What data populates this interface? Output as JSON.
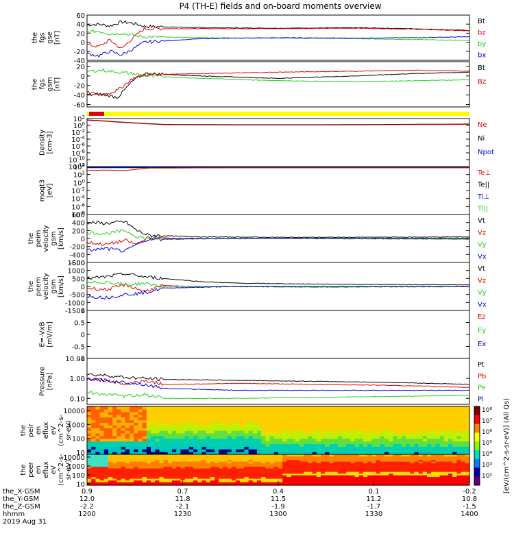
{
  "title": "P4 (TH-E) fields and on-board moments overview",
  "colors": {
    "black": "#000000",
    "red": "#e00000",
    "green": "#20d020",
    "blue": "#0000e0",
    "yellow": "#ffff00",
    "orange": "#ffa000",
    "cyan": "#00e0e0"
  },
  "chart_data": [
    {
      "type": "line",
      "id": "fgs_gse",
      "ylabel": [
        "the",
        "fgs",
        "gse",
        "[nT]"
      ],
      "ylim": [
        -40,
        60
      ],
      "yticks": [
        -40,
        -20,
        0,
        20,
        40,
        60
      ],
      "legend": [
        "Bt",
        "bz",
        "by",
        "bx"
      ],
      "series": [
        {
          "name": "Bt",
          "color": "black",
          "x": [
            0,
            0.03,
            0.06,
            0.09,
            0.12,
            0.15,
            0.3,
            0.5,
            0.7,
            0.85,
            1.0
          ],
          "y": [
            38,
            40,
            36,
            45,
            42,
            35,
            32,
            31,
            32,
            30,
            26
          ]
        },
        {
          "name": "bz",
          "color": "red",
          "x": [
            0,
            0.03,
            0.06,
            0.09,
            0.12,
            0.15,
            0.3,
            0.5,
            0.7,
            0.85,
            1.0
          ],
          "y": [
            -5,
            -10,
            5,
            -15,
            10,
            30,
            30,
            30,
            31,
            29,
            25
          ]
        },
        {
          "name": "by",
          "color": "green",
          "x": [
            0,
            0.03,
            0.06,
            0.09,
            0.12,
            0.15,
            0.3,
            0.5,
            0.7,
            0.85,
            1.0
          ],
          "y": [
            22,
            25,
            18,
            20,
            15,
            12,
            10,
            9,
            8,
            6,
            4
          ]
        },
        {
          "name": "bx",
          "color": "blue",
          "x": [
            0,
            0.03,
            0.06,
            0.09,
            0.12,
            0.15,
            0.3,
            0.5,
            0.7,
            0.85,
            1.0
          ],
          "y": [
            -25,
            -30,
            -20,
            -28,
            -15,
            0,
            8,
            10,
            9,
            10,
            12
          ]
        }
      ]
    },
    {
      "type": "line",
      "id": "fgs_gsm",
      "ylabel": [
        "the",
        "fgs",
        "gsm",
        "[nT]"
      ],
      "ylim": [
        -65,
        30
      ],
      "yticks": [
        -60,
        -40,
        -20,
        0,
        20
      ],
      "legend": [
        "Bt",
        "Bz"
      ],
      "series": [
        {
          "name": "black",
          "color": "black",
          "x": [
            0,
            0.04,
            0.08,
            0.12,
            0.15,
            0.3,
            0.5,
            0.7,
            0.85,
            1.0
          ],
          "y": [
            -40,
            -38,
            -45,
            -10,
            5,
            0,
            -5,
            0,
            5,
            8
          ]
        },
        {
          "name": "red",
          "color": "red",
          "x": [
            0,
            0.04,
            0.08,
            0.12,
            0.15,
            0.3,
            0.5,
            0.7,
            0.85,
            1.0
          ],
          "y": [
            -35,
            -40,
            -30,
            -5,
            3,
            5,
            8,
            10,
            12,
            10
          ]
        },
        {
          "name": "green",
          "color": "green",
          "x": [
            0,
            0.04,
            0.08,
            0.12,
            0.15,
            0.3,
            0.5,
            0.7,
            0.85,
            1.0
          ],
          "y": [
            10,
            12,
            8,
            5,
            0,
            -5,
            -10,
            -12,
            -10,
            -8
          ]
        }
      ]
    },
    {
      "type": "line",
      "id": "density",
      "log": true,
      "ylabel": [
        "Density",
        "[cm-3]"
      ],
      "ylim": [
        -12,
        2
      ],
      "yticks": [
        2,
        0,
        -2,
        -4,
        -6,
        -8,
        -10,
        -12
      ],
      "legend": [
        "Ne",
        "Ni",
        "Npot"
      ],
      "series": [
        {
          "name": "Ni",
          "color": "black",
          "x": [
            0,
            0.05,
            0.1,
            0.15,
            0.2,
            0.4,
            0.6,
            0.8,
            1.0
          ],
          "y": [
            1.6,
            1.3,
            0.9,
            0.6,
            0.3,
            0.2,
            0.2,
            0.3,
            0.4
          ]
        },
        {
          "name": "Ne",
          "color": "red",
          "x": [
            0,
            0.05,
            0.1,
            0.15,
            0.2,
            0.4,
            0.6,
            0.8,
            1.0
          ],
          "y": [
            1.5,
            1.2,
            0.8,
            0.5,
            0.2,
            0.1,
            0.1,
            0.2,
            0.3
          ]
        }
      ]
    },
    {
      "type": "line",
      "id": "temperature",
      "log": true,
      "ylabel": [
        "moqt3",
        "[eV]"
      ],
      "ylim": [
        -8,
        4
      ],
      "yticks": [
        4,
        2,
        0,
        -2,
        -4,
        -6,
        -8
      ],
      "legend": [
        "Te⊥",
        "Te||",
        "Ti⊥",
        "Ti||"
      ],
      "series": [
        {
          "name": "Te||",
          "color": "black",
          "x": [
            0,
            1
          ],
          "y": [
            3.7,
            3.7
          ]
        },
        {
          "name": "Ti||",
          "color": "green",
          "x": [
            0,
            1
          ],
          "y": [
            3.85,
            3.85
          ]
        },
        {
          "name": "Ti⊥",
          "color": "blue",
          "x": [
            0,
            1
          ],
          "y": [
            3.8,
            3.8
          ]
        },
        {
          "name": "Te⊥",
          "color": "red",
          "x": [
            0,
            0.05,
            0.1,
            0.13,
            0.16,
            0.4,
            1.0
          ],
          "y": [
            3.0,
            3.1,
            3.0,
            3.3,
            3.6,
            3.7,
            3.7
          ]
        }
      ]
    },
    {
      "type": "line",
      "id": "peim_velocity",
      "ylabel": [
        "the",
        "peim",
        "velocity",
        "gsm",
        "[km/s]"
      ],
      "ylim": [
        -600,
        600
      ],
      "yticks": [
        -600,
        -400,
        -200,
        0,
        200,
        400,
        600
      ],
      "legend": [
        "Vt",
        "Vz",
        "Vy",
        "Vx"
      ],
      "series": [
        {
          "name": "Vt",
          "color": "black",
          "x": [
            0,
            0.05,
            0.1,
            0.13,
            0.16,
            0.3,
            0.5,
            0.7,
            1.0
          ],
          "y": [
            400,
            380,
            420,
            200,
            80,
            40,
            30,
            30,
            40
          ]
        },
        {
          "name": "Vz",
          "color": "red",
          "x": [
            0,
            0.05,
            0.1,
            0.13,
            0.16,
            0.3,
            0.5,
            0.7,
            1.0
          ],
          "y": [
            -100,
            -150,
            -50,
            -150,
            20,
            0,
            0,
            0,
            10
          ]
        },
        {
          "name": "Vy",
          "color": "green",
          "x": [
            0,
            0.05,
            0.1,
            0.13,
            0.16,
            0.3,
            0.5,
            0.7,
            1.0
          ],
          "y": [
            150,
            120,
            200,
            50,
            -10,
            0,
            0,
            -10,
            -20
          ]
        },
        {
          "name": "Vx",
          "color": "blue",
          "x": [
            0,
            0.05,
            0.1,
            0.13,
            0.16,
            0.3,
            0.5,
            0.7,
            1.0
          ],
          "y": [
            -300,
            -250,
            -320,
            -150,
            -20,
            -10,
            0,
            0,
            0
          ]
        }
      ]
    },
    {
      "type": "line",
      "id": "peem_velocity",
      "ylabel": [
        "the",
        "peem",
        "velocity",
        "gsm",
        "[km/s]"
      ],
      "ylim": [
        -1500,
        1500
      ],
      "yticks": [
        -1500,
        -1000,
        -500,
        0,
        500,
        1000,
        1500
      ],
      "legend": [
        "Vt",
        "Vz",
        "Vy",
        "Vx"
      ],
      "series": [
        {
          "name": "Vt",
          "color": "black",
          "x": [
            0,
            0.05,
            0.1,
            0.15,
            0.2,
            0.3,
            0.4,
            0.6,
            0.8,
            1.0
          ],
          "y": [
            500,
            600,
            800,
            600,
            500,
            300,
            200,
            150,
            120,
            100
          ]
        },
        {
          "name": "Vz",
          "color": "red",
          "x": [
            0,
            0.05,
            0.1,
            0.15,
            0.2,
            0.3,
            0.4,
            0.6,
            0.8,
            1.0
          ],
          "y": [
            -100,
            -200,
            100,
            -300,
            50,
            0,
            0,
            0,
            0,
            0
          ]
        },
        {
          "name": "Vy",
          "color": "green",
          "x": [
            0,
            0.05,
            0.1,
            0.15,
            0.2,
            0.3,
            0.4,
            0.6,
            0.8,
            1.0
          ],
          "y": [
            200,
            300,
            100,
            200,
            0,
            0,
            -20,
            -50,
            -30,
            -20
          ]
        },
        {
          "name": "Vx",
          "color": "blue",
          "x": [
            0,
            0.05,
            0.1,
            0.15,
            0.2,
            0.3,
            0.4,
            0.6,
            0.8,
            1.0
          ],
          "y": [
            -600,
            -700,
            -500,
            -400,
            -100,
            -50,
            0,
            0,
            0,
            0
          ]
        }
      ]
    },
    {
      "type": "line",
      "id": "efield",
      "ylabel": [
        "E=-VxB",
        "[mV/m]"
      ],
      "ylim": [
        -1,
        1
      ],
      "yticks": [
        -1.0,
        -0.5,
        0.0,
        0.5,
        1.0
      ],
      "legend": [
        "Ez",
        "Ey",
        "Ex"
      ],
      "series": []
    },
    {
      "type": "line",
      "id": "pressure",
      "log": true,
      "ylabel": [
        "Pressure",
        "[nPa]"
      ],
      "ylim": [
        -1.3,
        1
      ],
      "yticks": [
        1,
        0,
        -1
      ],
      "ytick_labels": [
        "10.00",
        "1.00",
        "0.10"
      ],
      "legend": [
        "Pt",
        "Pb",
        "Pe",
        "Pi"
      ],
      "series": [
        {
          "name": "Pt",
          "color": "black",
          "x": [
            0,
            0.05,
            0.1,
            0.15,
            0.2,
            0.4,
            0.6,
            0.8,
            1.0
          ],
          "y": [
            0.2,
            0.15,
            0.05,
            0.0,
            -0.05,
            -0.1,
            -0.15,
            -0.2,
            -0.3
          ]
        },
        {
          "name": "Pb",
          "color": "red",
          "x": [
            0,
            0.05,
            0.1,
            0.15,
            0.2,
            0.4,
            0.6,
            0.8,
            1.0
          ],
          "y": [
            0.0,
            -0.1,
            -0.3,
            -0.1,
            -0.3,
            -0.25,
            -0.3,
            -0.35,
            -0.45
          ]
        },
        {
          "name": "Pe",
          "color": "green",
          "x": [
            0,
            0.05,
            0.1,
            0.15,
            0.2,
            0.4,
            0.6,
            0.8,
            1.0
          ],
          "y": [
            -0.7,
            -0.8,
            -0.9,
            -0.8,
            -1.0,
            -1.0,
            -0.95,
            -0.9,
            -0.85
          ]
        },
        {
          "name": "Pi",
          "color": "blue",
          "x": [
            0,
            0.05,
            0.1,
            0.15,
            0.2,
            0.4,
            0.6,
            0.8,
            1.0
          ],
          "y": [
            -0.05,
            -0.1,
            -0.2,
            -0.3,
            -0.5,
            -0.6,
            -0.6,
            -0.6,
            -0.6
          ]
        }
      ]
    },
    {
      "type": "heatmap",
      "id": "peir",
      "ylabel": [
        "the",
        "peir",
        "en",
        "eflux",
        "eV",
        "(cm^2-s-",
        "sr-eV)"
      ],
      "yticks": [
        10,
        100,
        1000,
        10000
      ]
    },
    {
      "type": "heatmap",
      "id": "peer",
      "ylabel": [
        "the",
        "peer",
        "en",
        "eflux",
        "eV",
        "(cm^2-s-",
        "sr-eV)"
      ],
      "yticks": [
        10,
        100,
        1000,
        10000
      ]
    }
  ],
  "colorbar": {
    "ticks": [
      "10⁸",
      "10⁷",
      "10⁶",
      "10⁵",
      "10⁴",
      "10³",
      "10²"
    ],
    "label": "[eV/(cm^2-s-sr-eV)] (All Qs)"
  },
  "x_axis": {
    "rows": [
      {
        "label": "the_X-GSM",
        "values": [
          "0.9",
          "0.7",
          "0.4",
          "0.1",
          "-0.2"
        ]
      },
      {
        "label": "the_Y-GSM",
        "values": [
          "12.0",
          "11.8",
          "11.5",
          "11.2",
          "10.8"
        ]
      },
      {
        "label": "the_Z-GSM",
        "values": [
          "-2.2",
          "-2.1",
          "-1.9",
          "-1.7",
          "-1.5"
        ]
      },
      {
        "label": "hhmm",
        "values": [
          "1200",
          "1230",
          "1300",
          "1330",
          "1400"
        ]
      }
    ],
    "date": "2019 Aug 31"
  }
}
